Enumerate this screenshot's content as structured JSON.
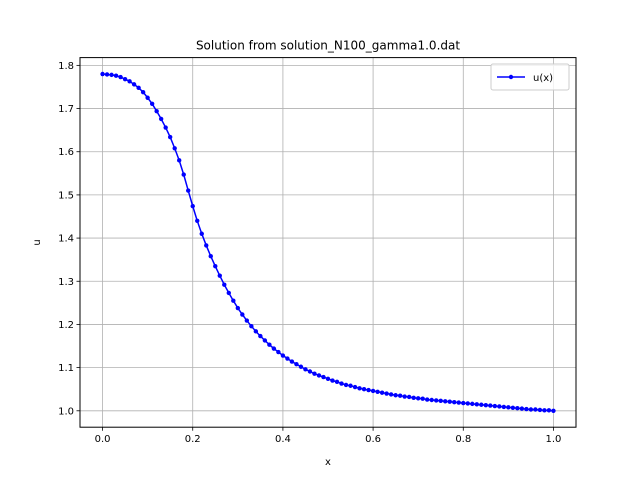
{
  "chart_data": {
    "type": "line",
    "title": "Solution from solution_N100_gamma1.0.dat",
    "xlabel": "x",
    "ylabel": "u",
    "xlim": [
      -0.05,
      1.05
    ],
    "ylim": [
      0.962,
      1.818
    ],
    "x_ticks": [
      "0.0",
      "0.2",
      "0.4",
      "0.6",
      "0.8",
      "1.0"
    ],
    "y_ticks": [
      "1.0",
      "1.1",
      "1.2",
      "1.3",
      "1.4",
      "1.5",
      "1.6",
      "1.7",
      "1.8"
    ],
    "grid": true,
    "legend": {
      "position": "top-right",
      "entries": [
        "u(x)"
      ]
    },
    "series": [
      {
        "name": "u(x)",
        "color": "#0000ff",
        "marker": "circle",
        "x": [
          0.0,
          0.01,
          0.02,
          0.03,
          0.04,
          0.05,
          0.06,
          0.07,
          0.08,
          0.09,
          0.1,
          0.11,
          0.12,
          0.13,
          0.14,
          0.15,
          0.16,
          0.17,
          0.18,
          0.19,
          0.2,
          0.21,
          0.22,
          0.23,
          0.24,
          0.25,
          0.26,
          0.27,
          0.28,
          0.29,
          0.3,
          0.31,
          0.32,
          0.33,
          0.34,
          0.35,
          0.36,
          0.37,
          0.38,
          0.39,
          0.4,
          0.41,
          0.42,
          0.43,
          0.44,
          0.45,
          0.46,
          0.47,
          0.48,
          0.49,
          0.5,
          0.51,
          0.52,
          0.53,
          0.54,
          0.55,
          0.56,
          0.57,
          0.58,
          0.59,
          0.6,
          0.61,
          0.62,
          0.63,
          0.64,
          0.65,
          0.66,
          0.67,
          0.68,
          0.69,
          0.7,
          0.71,
          0.72,
          0.73,
          0.74,
          0.75,
          0.76,
          0.77,
          0.78,
          0.79,
          0.8,
          0.81,
          0.82,
          0.83,
          0.84,
          0.85,
          0.86,
          0.87,
          0.88,
          0.89,
          0.9,
          0.91,
          0.92,
          0.93,
          0.94,
          0.95,
          0.96,
          0.97,
          0.98,
          0.99,
          1.0
        ],
        "values": [
          1.78,
          1.779,
          1.778,
          1.776,
          1.773,
          1.768,
          1.763,
          1.756,
          1.748,
          1.738,
          1.725,
          1.711,
          1.694,
          1.676,
          1.656,
          1.634,
          1.608,
          1.58,
          1.547,
          1.51,
          1.474,
          1.44,
          1.41,
          1.383,
          1.358,
          1.335,
          1.313,
          1.292,
          1.273,
          1.255,
          1.238,
          1.223,
          1.209,
          1.196,
          1.184,
          1.173,
          1.163,
          1.153,
          1.144,
          1.136,
          1.128,
          1.121,
          1.114,
          1.108,
          1.102,
          1.096,
          1.091,
          1.086,
          1.082,
          1.078,
          1.074,
          1.07,
          1.067,
          1.063,
          1.06,
          1.058,
          1.055,
          1.052,
          1.05,
          1.048,
          1.046,
          1.044,
          1.042,
          1.04,
          1.038,
          1.036,
          1.035,
          1.033,
          1.032,
          1.03,
          1.029,
          1.028,
          1.026,
          1.025,
          1.024,
          1.023,
          1.022,
          1.021,
          1.02,
          1.019,
          1.018,
          1.017,
          1.016,
          1.015,
          1.014,
          1.013,
          1.012,
          1.011,
          1.01,
          1.009,
          1.008,
          1.007,
          1.006,
          1.005,
          1.004,
          1.003,
          1.003,
          1.002,
          1.001,
          1.001,
          1.0
        ]
      }
    ]
  }
}
